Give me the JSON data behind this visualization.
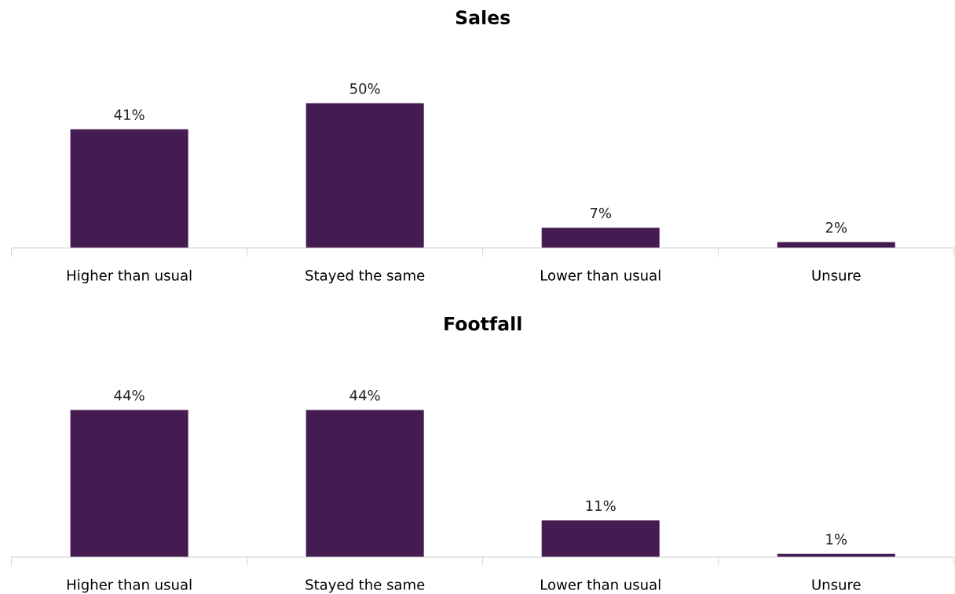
{
  "chart_data": [
    {
      "type": "bar",
      "title": "Sales",
      "categories": [
        "Higher than usual",
        "Stayed the same",
        "Lower than usual",
        "Unsure"
      ],
      "values": [
        41,
        50,
        7,
        2
      ],
      "value_labels": [
        "41%",
        "50%",
        "7%",
        "2%"
      ],
      "color": "#451c52",
      "tick_labels": "x"
    },
    {
      "type": "bar",
      "title": "Footfall",
      "categories": [
        "Higher than usual",
        "Stayed the same",
        "Lower than usual",
        "Unsure"
      ],
      "values": [
        44,
        44,
        11,
        1
      ],
      "value_labels": [
        "44%",
        "44%",
        "11%",
        "1%"
      ],
      "color": "#451c52",
      "tick_labels": "x"
    }
  ]
}
